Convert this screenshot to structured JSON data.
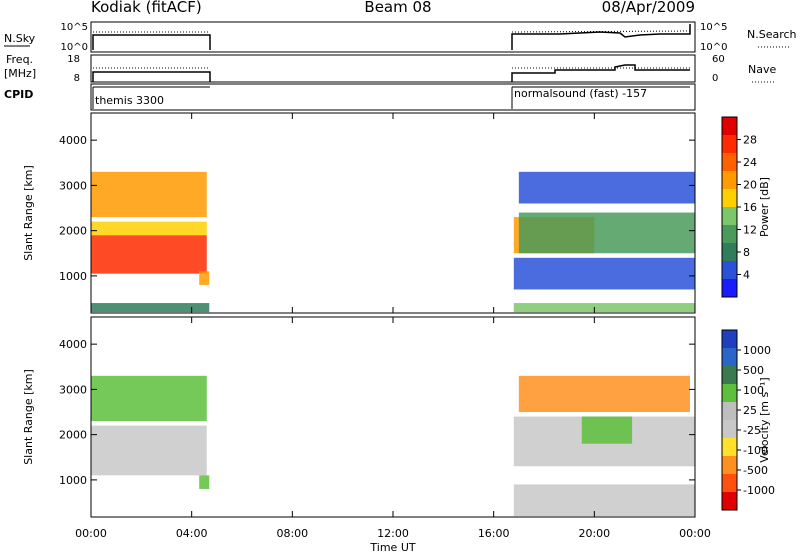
{
  "header": {
    "left_title": "Kodiak (fitACF)",
    "center_title": "Beam 08",
    "right_title": "08/Apr/2009"
  },
  "top_panels": {
    "nsky_label": "N.Sky",
    "nsky_ticks": [
      "10^5",
      "10^0"
    ],
    "nsearch_label": "N.Search",
    "nsearch_ticks": [
      "10^5",
      "10^0"
    ],
    "freq_label_line1": "Freq.",
    "freq_label_line2": "[MHz]",
    "freq_ticks": [
      "18",
      "8"
    ],
    "nave_label": "Nave",
    "nave_ticks": [
      "60",
      "0"
    ],
    "cpid_label": "CPID",
    "cpid_segments": [
      {
        "name": "themis 3300",
        "start_hour": 0.0,
        "end_hour": 4.8
      },
      {
        "name": "normalsound (fast) -157",
        "start_hour": 16.8,
        "end_hour": 24.0
      }
    ]
  },
  "colors": {
    "power_scale": [
      "#1b1bff",
      "#2a52d8",
      "#2f7d5a",
      "#4a9a5a",
      "#7cc76a",
      "#ffd000",
      "#ff9a00",
      "#ff6000",
      "#ff2a00",
      "#e00000"
    ],
    "velocity_scale": [
      "#1f3fbf",
      "#2a66c8",
      "#3b7a4e",
      "#5cc03c",
      "#bebebe",
      "#c8c8c8",
      "#ffe02a",
      "#ff9020",
      "#ff5010",
      "#e00000"
    ]
  },
  "chart_data": [
    {
      "type": "heatmap",
      "name": "power",
      "xlabel": "",
      "ylabel": "Slant Range [km]",
      "xlim_hours": [
        0,
        24
      ],
      "ylim": [
        180,
        4600
      ],
      "yticks": [
        "1000",
        "2000",
        "3000",
        "4000"
      ],
      "colorbar_label": "Power [dB]",
      "colorbar_ticks": [
        "4",
        "8",
        "12",
        "16",
        "20",
        "24",
        "28"
      ],
      "blocks": [
        {
          "x0": 0.0,
          "x1": 4.6,
          "y0": 1050,
          "y1": 1900,
          "value": 26
        },
        {
          "x0": 0.0,
          "x1": 4.6,
          "y0": 1900,
          "y1": 2200,
          "value": 18
        },
        {
          "x0": 0.0,
          "x1": 4.6,
          "y0": 2300,
          "y1": 3300,
          "value": 20
        },
        {
          "x0": 4.3,
          "x1": 4.7,
          "y0": 800,
          "y1": 1100,
          "value": 22
        },
        {
          "x0": 0.0,
          "x1": 4.7,
          "y0": 200,
          "y1": 400,
          "value": 10
        },
        {
          "x0": 16.8,
          "x1": 20.0,
          "y0": 1500,
          "y1": 2300,
          "value": 21
        },
        {
          "x0": 17.0,
          "x1": 24.0,
          "y0": 1500,
          "y1": 2400,
          "value": 13
        },
        {
          "x0": 17.0,
          "x1": 24.0,
          "y0": 2600,
          "y1": 3300,
          "value": 7
        },
        {
          "x0": 16.8,
          "x1": 24.0,
          "y0": 700,
          "y1": 1400,
          "value": 6
        },
        {
          "x0": 16.8,
          "x1": 24.0,
          "y0": 200,
          "y1": 400,
          "value": 14
        }
      ]
    },
    {
      "type": "heatmap",
      "name": "velocity",
      "xlabel": "Time UT",
      "ylabel": "Slant Range [km]",
      "xlim_hours": [
        0,
        24
      ],
      "ylim": [
        180,
        4600
      ],
      "xticks": [
        "00:00",
        "04:00",
        "08:00",
        "12:00",
        "16:00",
        "20:00",
        "00:00"
      ],
      "yticks": [
        "1000",
        "2000",
        "3000",
        "4000"
      ],
      "colorbar_label": "Velocity [m s⁻¹]",
      "colorbar_ticks": [
        "1000",
        "500",
        "100",
        "25",
        "-25",
        "-100",
        "-500",
        "-1000"
      ],
      "blocks": [
        {
          "x0": 0.0,
          "x1": 4.6,
          "y0": 1100,
          "y1": 2200,
          "value": 0
        },
        {
          "x0": 0.0,
          "x1": 4.6,
          "y0": 2300,
          "y1": 3300,
          "value": 150
        },
        {
          "x0": 4.3,
          "x1": 4.7,
          "y0": 800,
          "y1": 1100,
          "value": 120
        },
        {
          "x0": 16.8,
          "x1": 24.0,
          "y0": 1300,
          "y1": 2400,
          "value": 0
        },
        {
          "x0": 17.0,
          "x1": 23.8,
          "y0": 2500,
          "y1": 3300,
          "value": -200
        },
        {
          "x0": 19.5,
          "x1": 21.5,
          "y0": 1800,
          "y1": 2400,
          "value": 120
        },
        {
          "x0": 16.8,
          "x1": 24.0,
          "y0": 200,
          "y1": 900,
          "value": -40
        }
      ]
    }
  ]
}
